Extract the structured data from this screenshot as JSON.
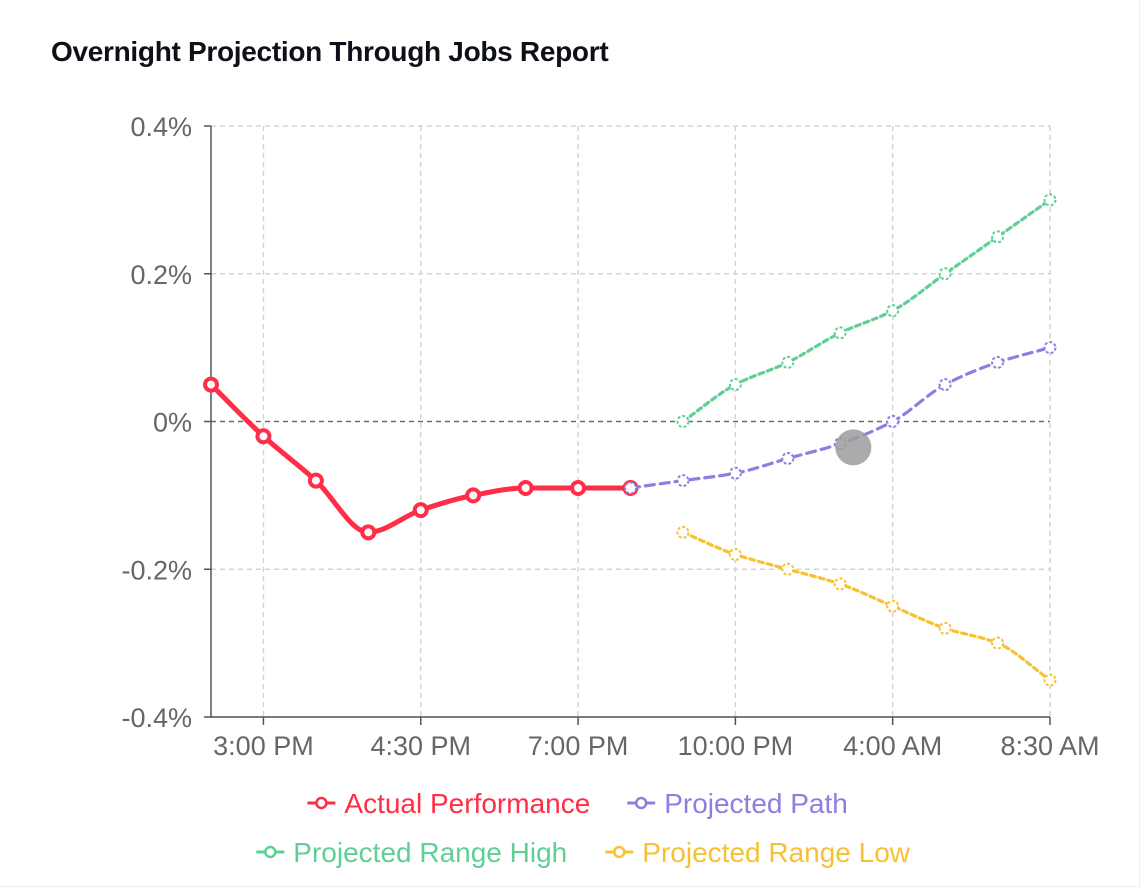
{
  "chart_data": {
    "type": "line",
    "title": "Overnight Projection Through Jobs Report",
    "ylim": [
      -0.4,
      0.4
    ],
    "y_ticks": [
      {
        "value": 0.4,
        "label": "0.4%"
      },
      {
        "value": 0.2,
        "label": "0.2%"
      },
      {
        "value": 0,
        "label": "0%"
      },
      {
        "value": -0.2,
        "label": "-0.2%"
      },
      {
        "value": -0.4,
        "label": "-0.4%"
      }
    ],
    "x_count": 17,
    "x_ticks": [
      {
        "index": 1,
        "label": "3:00 PM"
      },
      {
        "index": 4,
        "label": "4:30 PM"
      },
      {
        "index": 7,
        "label": "7:00 PM"
      },
      {
        "index": 10,
        "label": "10:00 PM"
      },
      {
        "index": 13,
        "label": "4:00 AM"
      },
      {
        "index": 16,
        "label": "8:30 AM"
      }
    ],
    "reference_line": 0,
    "grid": true,
    "legend_position": "bottom",
    "series": [
      {
        "name": "Actual Performance",
        "color": "#ff2d45",
        "dashed": false,
        "start_index": 0,
        "values": [
          0.05,
          -0.02,
          -0.08,
          -0.15,
          -0.12,
          -0.1,
          -0.09,
          -0.09,
          -0.09
        ]
      },
      {
        "name": "Projected Path",
        "color": "#8b80e0",
        "dashed": true,
        "start_index": 8,
        "values": [
          -0.09,
          -0.08,
          -0.07,
          -0.05,
          -0.03,
          0.0,
          0.05,
          0.08,
          0.1
        ]
      },
      {
        "name": "Projected Range High",
        "color": "#5fcf94",
        "dashed": true,
        "start_index": 9,
        "values": [
          0.0,
          0.05,
          0.08,
          0.12,
          0.15,
          0.2,
          0.25,
          0.3
        ]
      },
      {
        "name": "Projected Range Low",
        "color": "#f6c233",
        "dashed": true,
        "start_index": 9,
        "values": [
          -0.15,
          -0.18,
          -0.2,
          -0.22,
          -0.25,
          -0.28,
          -0.3,
          -0.35
        ]
      }
    ],
    "hover_marker": {
      "series": "Projected Path",
      "x_index": 12.25,
      "y": -0.035,
      "color": "#9c9c9c"
    }
  }
}
